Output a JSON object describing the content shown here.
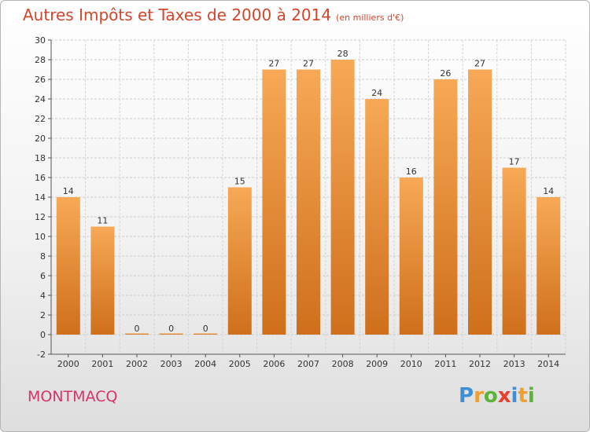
{
  "header": {
    "title": "Autres Impôts et Taxes de 2000 à 2014",
    "unit": "(en milliers d'€)"
  },
  "footer": {
    "place": "MONTMACQ",
    "logo_letters": [
      "P",
      "r",
      "o",
      "x",
      "i",
      "t",
      "i"
    ],
    "logo_colors": [
      "#3e8fd6",
      "#f0a030",
      "#5cb338",
      "#e8402c",
      "#3e8fd6",
      "#f0a030",
      "#5cb338"
    ]
  },
  "colors": {
    "bar": "#f29a3c",
    "bar_light": "#f7ad5e",
    "bar_dark": "#d2701e",
    "title": "#d2462c",
    "grid": "#cccccc"
  },
  "chart_data": {
    "type": "bar",
    "categories": [
      "2000",
      "2001",
      "2002",
      "2003",
      "2004",
      "2005",
      "2006",
      "2007",
      "2008",
      "2009",
      "2010",
      "2011",
      "2012",
      "2013",
      "2014"
    ],
    "values": [
      14,
      11,
      0,
      0,
      0,
      15,
      27,
      27,
      28,
      24,
      16,
      26,
      27,
      17,
      14
    ],
    "data_labels": [
      "14",
      "11",
      "0",
      "0",
      "0",
      "15",
      "27",
      "27",
      "28",
      "24",
      "16",
      "26",
      "27",
      "17",
      "14"
    ],
    "y_ticks": [
      -2,
      0,
      2,
      4,
      6,
      8,
      10,
      12,
      14,
      16,
      18,
      20,
      22,
      24,
      26,
      28,
      30
    ],
    "ylim": [
      -2,
      30
    ],
    "grid": "horizontal"
  }
}
